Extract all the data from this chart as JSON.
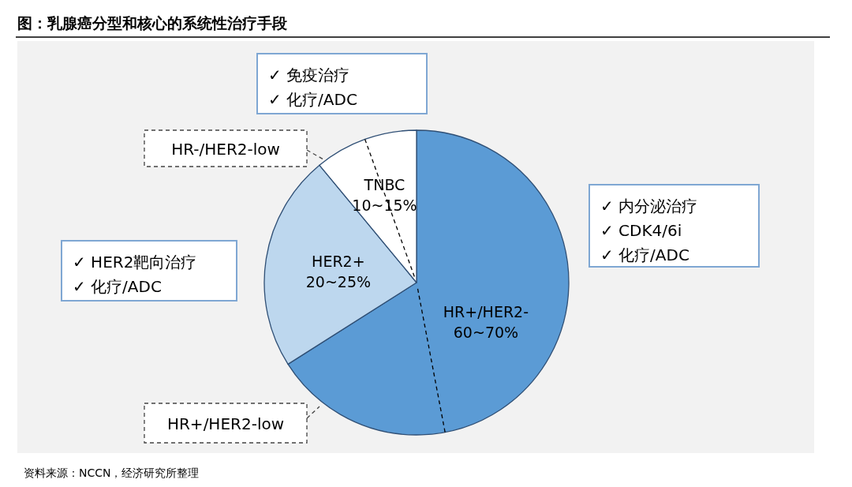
{
  "chart_data": {
    "type": "pie",
    "title": "图：乳腺癌分型和核心的系统性治疗手段",
    "categories": [
      "HR+/HER2-",
      "HER2+",
      "TNBC"
    ],
    "values": [
      66,
      23,
      11
    ],
    "colors": [
      "#5b9bd5",
      "#bdd7ee",
      "#ffffff"
    ],
    "annotations": [
      "✓ 免疫治疗",
      "✓ 化疗/ADC",
      "✓ 内分泌治疗",
      "✓ CDK4/6i",
      "✓ 化疗/ADC",
      "✓ HER2靶向治疗",
      "✓ 化疗/ADC",
      "HR-/HER2-low",
      "HR+/HER2-low",
      "资料来源：NCCN，经济研究所整理",
      "60~70%",
      "20~25%",
      "10~15%"
    ]
  }
}
